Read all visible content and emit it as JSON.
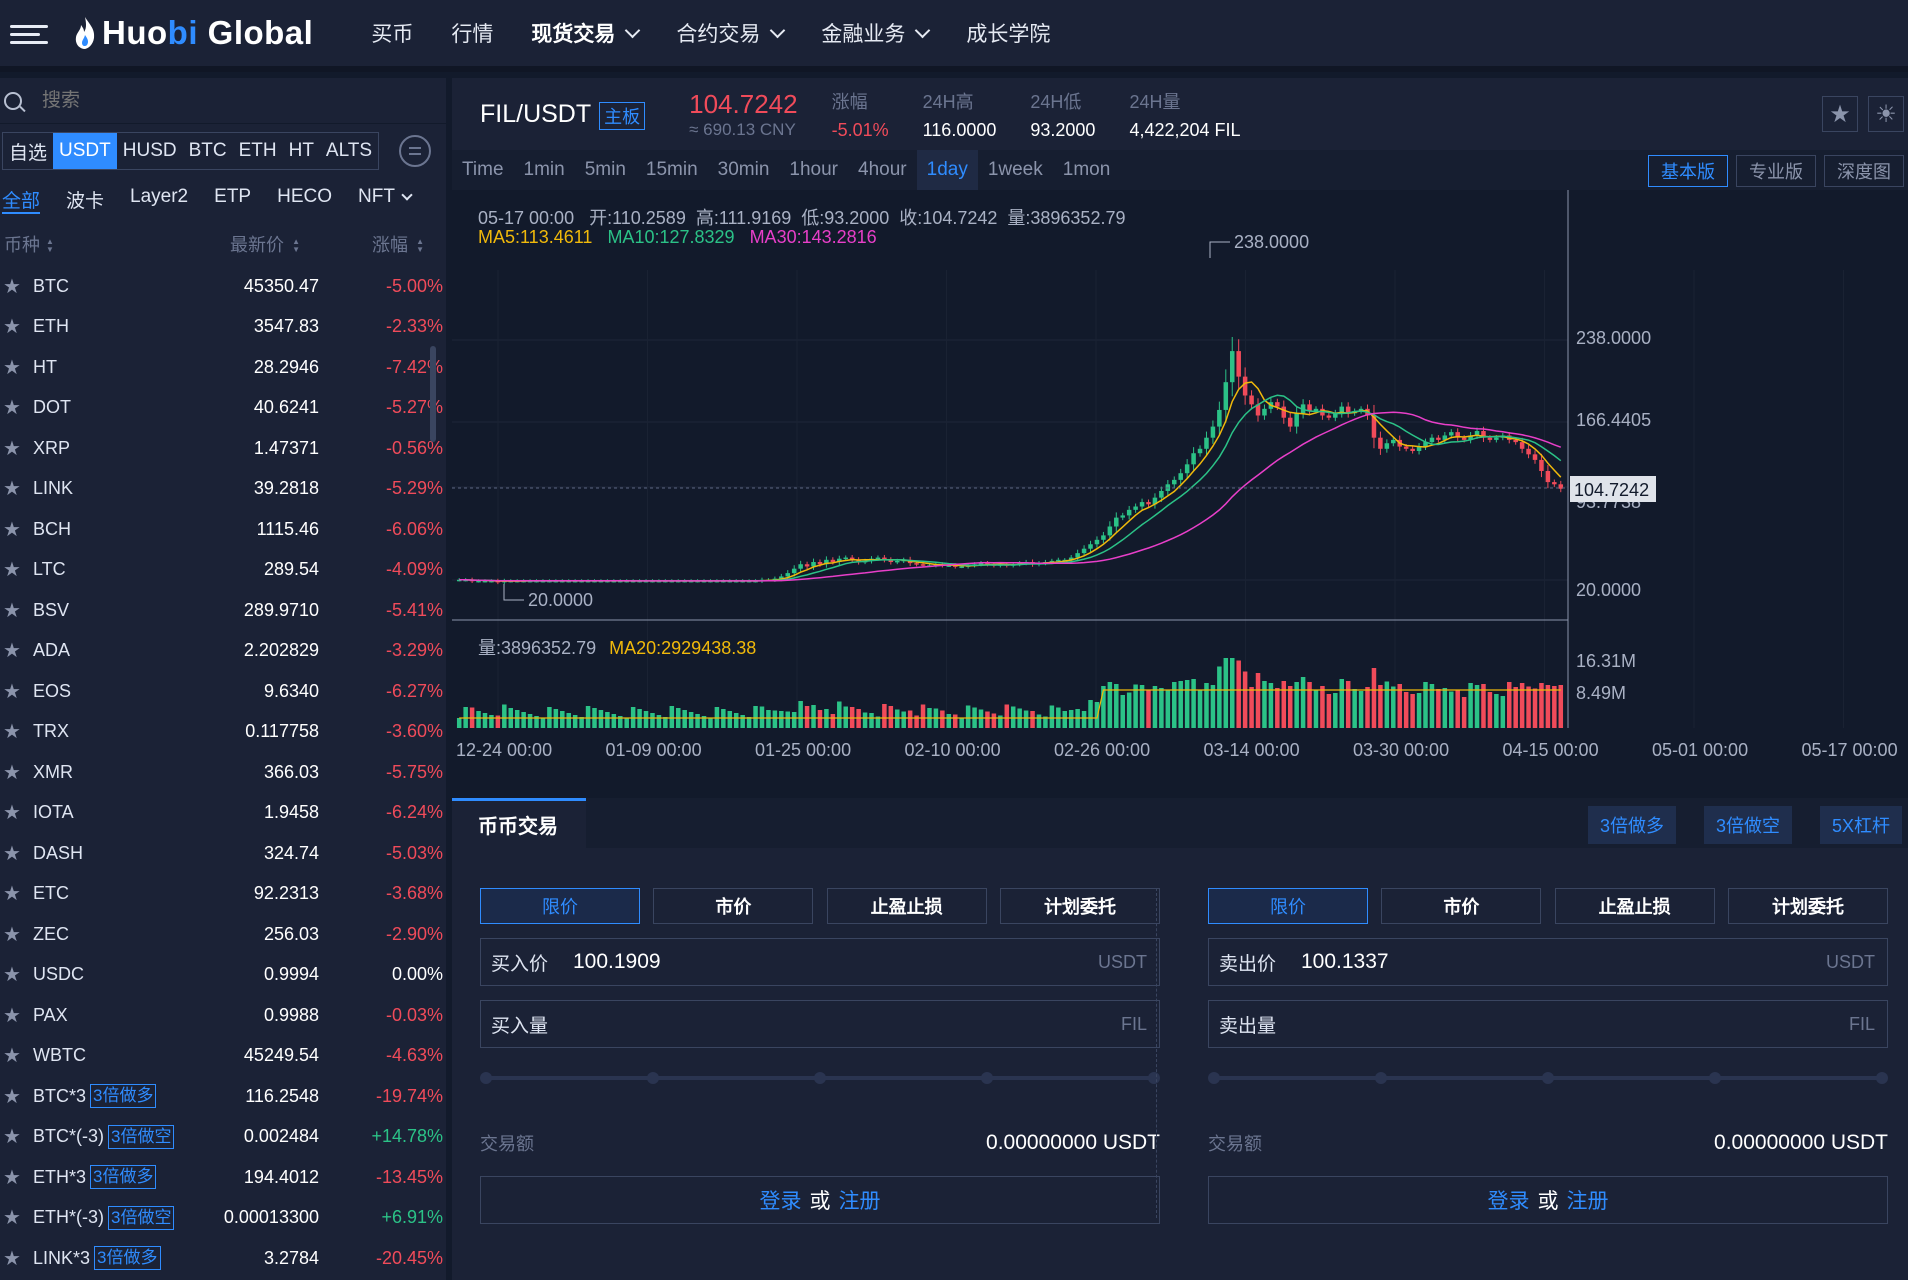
{
  "app": {
    "brand_prefix": "Huo",
    "brand_bi": "bi",
    "brand_suffix": " Global"
  },
  "nav": {
    "items": [
      {
        "label": "买币",
        "dropdown": false
      },
      {
        "label": "行情",
        "dropdown": false
      },
      {
        "label": "现货交易",
        "dropdown": true,
        "active": true
      },
      {
        "label": "合约交易",
        "dropdown": true
      },
      {
        "label": "金融业务",
        "dropdown": true
      },
      {
        "label": "成长学院",
        "dropdown": false
      }
    ]
  },
  "sidebar": {
    "search_placeholder": "搜索",
    "quote_tabs": [
      "自选",
      "USDT",
      "HUSD",
      "BTC",
      "ETH",
      "HT",
      "ALTS"
    ],
    "active_quote": "USDT",
    "sub_tabs": [
      "全部",
      "波卡",
      "Layer2",
      "ETP",
      "HECO",
      "NFT"
    ],
    "col_symbol": "币种",
    "col_price": "最新价",
    "col_change": "涨幅",
    "rows": [
      {
        "symbol": "BTC",
        "price": "45350.47",
        "change": "-5.00%",
        "dir": "down"
      },
      {
        "symbol": "ETH",
        "price": "3547.83",
        "change": "-2.33%",
        "dir": "down"
      },
      {
        "symbol": "HT",
        "price": "28.2946",
        "change": "-7.42%",
        "dir": "down"
      },
      {
        "symbol": "DOT",
        "price": "40.6241",
        "change": "-5.27%",
        "dir": "down"
      },
      {
        "symbol": "XRP",
        "price": "1.47371",
        "change": "-0.56%",
        "dir": "down"
      },
      {
        "symbol": "LINK",
        "price": "39.2818",
        "change": "-5.29%",
        "dir": "down"
      },
      {
        "symbol": "BCH",
        "price": "1115.46",
        "change": "-6.06%",
        "dir": "down"
      },
      {
        "symbol": "LTC",
        "price": "289.54",
        "change": "-4.09%",
        "dir": "down"
      },
      {
        "symbol": "BSV",
        "price": "289.9710",
        "change": "-5.41%",
        "dir": "down"
      },
      {
        "symbol": "ADA",
        "price": "2.202829",
        "change": "-3.29%",
        "dir": "down"
      },
      {
        "symbol": "EOS",
        "price": "9.6340",
        "change": "-6.27%",
        "dir": "down"
      },
      {
        "symbol": "TRX",
        "price": "0.117758",
        "change": "-3.60%",
        "dir": "down"
      },
      {
        "symbol": "XMR",
        "price": "366.03",
        "change": "-5.75%",
        "dir": "down"
      },
      {
        "symbol": "IOTA",
        "price": "1.9458",
        "change": "-6.24%",
        "dir": "down"
      },
      {
        "symbol": "DASH",
        "price": "324.74",
        "change": "-5.03%",
        "dir": "down"
      },
      {
        "symbol": "ETC",
        "price": "92.2313",
        "change": "-3.68%",
        "dir": "down"
      },
      {
        "symbol": "ZEC",
        "price": "256.03",
        "change": "-2.90%",
        "dir": "down"
      },
      {
        "symbol": "USDC",
        "price": "0.9994",
        "change": "0.00%",
        "dir": "flat"
      },
      {
        "symbol": "PAX",
        "price": "0.9988",
        "change": "-0.03%",
        "dir": "down"
      },
      {
        "symbol": "WBTC",
        "price": "45249.54",
        "change": "-4.63%",
        "dir": "down"
      },
      {
        "symbol": "BTC*3",
        "tag": "3倍做多",
        "price": "116.2548",
        "change": "-19.74%",
        "dir": "down"
      },
      {
        "symbol": "BTC*(-3)",
        "tag": "3倍做空",
        "price": "0.002484",
        "change": "+14.78%",
        "dir": "up"
      },
      {
        "symbol": "ETH*3",
        "tag": "3倍做多",
        "price": "194.4012",
        "change": "-13.45%",
        "dir": "down"
      },
      {
        "symbol": "ETH*(-3)",
        "tag": "3倍做空",
        "price": "0.00013300",
        "change": "+6.91%",
        "dir": "up"
      },
      {
        "symbol": "LINK*3",
        "tag": "3倍做多",
        "price": "3.2784",
        "change": "-20.45%",
        "dir": "down"
      }
    ]
  },
  "ticker": {
    "pair": "FIL/USDT",
    "board": "主板",
    "last": "104.7242",
    "cny": "≈ 690.13 CNY",
    "change_label": "涨幅",
    "change": "-5.01%",
    "high_label": "24H高",
    "high": "116.0000",
    "low_label": "24H低",
    "low": "93.2000",
    "vol_label": "24H量",
    "vol": "4,422,204 FIL"
  },
  "periods": [
    "Time",
    "1min",
    "5min",
    "15min",
    "30min",
    "1hour",
    "4hour",
    "1day",
    "1week",
    "1mon"
  ],
  "active_period": "1day",
  "views": [
    "基本版",
    "专业版",
    "深度图"
  ],
  "active_view": "基本版",
  "chart_info": {
    "ohlc": "05-17 00:00   开:110.2589  高:111.9169  低:93.2000  收:104.7242  量:3896352.79",
    "ma5": "MA5:113.4611",
    "ma10": "MA10:127.8329",
    "ma30": "MA30:143.2816",
    "vol": "量:3896352.79",
    "vol_ma20": "MA20:2929438.38"
  },
  "chart_data": {
    "type": "candlestick",
    "price_axis_ticks": [
      "238.0000",
      "166.4405",
      "93.7738",
      "20.0000"
    ],
    "vol_axis_ticks": [
      "16.31M",
      "8.49M"
    ],
    "x_ticks": [
      "12-24 00:00",
      "01-09 00:00",
      "01-25 00:00",
      "02-10 00:00",
      "02-26 00:00",
      "03-14 00:00",
      "03-30 00:00",
      "04-15 00:00",
      "05-01 00:00",
      "05-17 00:00"
    ],
    "high_marker": "238.0000",
    "low_marker": "20.0000",
    "last_price_label": "104.7242",
    "ylim": [
      20,
      238
    ],
    "close_series": [
      22,
      22,
      21,
      21,
      21,
      21,
      20,
      21,
      21,
      21,
      21,
      21,
      21,
      21,
      21,
      21,
      21,
      21,
      21,
      21,
      21,
      21,
      21,
      21,
      21,
      21,
      21,
      21,
      21,
      21,
      21,
      21,
      21,
      21,
      21,
      21,
      21,
      21,
      21,
      21,
      21,
      21,
      21,
      21,
      21,
      21,
      21,
      22,
      22,
      23,
      25,
      28,
      32,
      36,
      34,
      38,
      36,
      40,
      38,
      41,
      42,
      40,
      38,
      39,
      41,
      42,
      40,
      38,
      39,
      40,
      37,
      36,
      35,
      35,
      36,
      35,
      35,
      34,
      34,
      35,
      36,
      37,
      36,
      35,
      36,
      35,
      36,
      37,
      38,
      36,
      37,
      38,
      39,
      40,
      40,
      42,
      46,
      50,
      54,
      58,
      62,
      70,
      78,
      80,
      85,
      88,
      92,
      90,
      96,
      102,
      108,
      112,
      118,
      126,
      136,
      140,
      150,
      160,
      175,
      200,
      228,
      205,
      188,
      180,
      170,
      176,
      182,
      178,
      168,
      160,
      172,
      180,
      174,
      176,
      170,
      168,
      172,
      178,
      172,
      174,
      176,
      170,
      150,
      140,
      145,
      148,
      142,
      140,
      138,
      142,
      146,
      150,
      148,
      152,
      155,
      150,
      148,
      152,
      156,
      150,
      148,
      150,
      152,
      148,
      146,
      140,
      135,
      130,
      120,
      110,
      108,
      104
    ]
  },
  "trade": {
    "tab": "币币交易",
    "levers": [
      "3倍做多",
      "3倍做空",
      "5X杠杆"
    ],
    "order_types": [
      "限价",
      "市价",
      "止盈止损",
      "计划委托"
    ],
    "buy": {
      "price_label": "买入价",
      "price": "100.1909",
      "price_unit": "USDT",
      "amount_label": "买入量",
      "amount_unit": "FIL",
      "total_label": "交易额",
      "total": "0.00000000 USDT"
    },
    "sell": {
      "price_label": "卖出价",
      "price": "100.1337",
      "price_unit": "USDT",
      "amount_label": "卖出量",
      "amount_unit": "FIL",
      "total_label": "交易额",
      "total": "0.00000000 USDT"
    },
    "login": "登录",
    "or": "或",
    "register": "注册"
  },
  "colors": {
    "up": "#2bc287",
    "down": "#f04b5a",
    "accent": "#2f8cff",
    "ma5": "#f0b90b",
    "ma10": "#2bc287",
    "ma30": "#e83fc9"
  }
}
